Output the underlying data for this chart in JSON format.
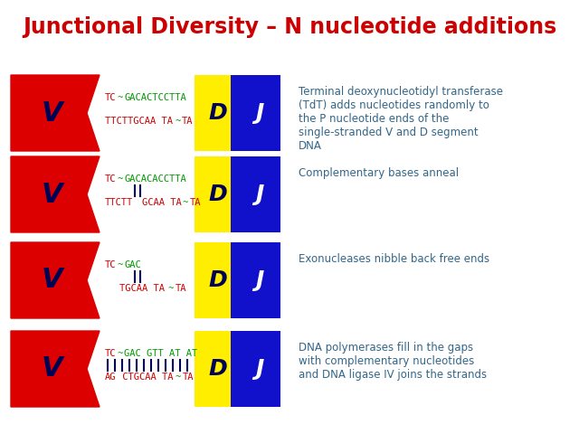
{
  "title": "Junctional Diversity – N nucleotide additions",
  "title_color": "#CC0000",
  "title_fontsize": 17,
  "bg_color": "#FFFFFF",
  "rows": [
    {
      "description": "Terminal deoxynucleotidyl transferase\n(TdT) adds nucleotides randomly to\nthe P nucleotide ends of the\nsingle-stranded V and D segment\nDNA",
      "top_seq_parts": [
        {
          "text": "TC",
          "color": "#CC0000"
        },
        {
          "text": "~",
          "color": "#009900"
        },
        {
          "text": "GACACTCCTTA",
          "color": "#009900"
        }
      ],
      "bottom_seq_parts": [
        {
          "text": "TTCTTGCAA TA",
          "color": "#CC0000"
        },
        {
          "text": "~",
          "color": "#009900"
        },
        {
          "text": "TA",
          "color": "#CC0000"
        }
      ],
      "lines": [],
      "short": false
    },
    {
      "description": "Complementary bases anneal",
      "top_seq_parts": [
        {
          "text": "TC",
          "color": "#CC0000"
        },
        {
          "text": "~",
          "color": "#009900"
        },
        {
          "text": "GACACACCTTA",
          "color": "#009900"
        }
      ],
      "bottom_seq_parts": [
        {
          "text": "TTCTT",
          "color": "#CC0000"
        },
        {
          "text": "GCAA TA",
          "color": "#CC0000"
        },
        {
          "text": "~",
          "color": "#009900"
        },
        {
          "text": "TA",
          "color": "#CC0000"
        }
      ],
      "lines": [
        0,
        1
      ],
      "short": false
    },
    {
      "description": "Exonucleases nibble back free ends",
      "top_seq_parts": [
        {
          "text": "TC",
          "color": "#CC0000"
        },
        {
          "text": "~",
          "color": "#009900"
        },
        {
          "text": "GAC",
          "color": "#009900"
        }
      ],
      "bottom_seq_parts": [
        {
          "text": "TGCAA TA",
          "color": "#CC0000"
        },
        {
          "text": "~",
          "color": "#009900"
        },
        {
          "text": "TA",
          "color": "#CC0000"
        }
      ],
      "lines": [
        0,
        1
      ],
      "short": true
    },
    {
      "description": "DNA polymerases fill in the gaps\nwith complementary nucleotides\nand DNA ligase IV joins the strands",
      "top_seq_parts": [
        {
          "text": "TC",
          "color": "#CC0000"
        },
        {
          "text": "~",
          "color": "#009900"
        },
        {
          "text": "GAC GTT AT AT",
          "color": "#009900"
        }
      ],
      "bottom_seq_parts": [
        {
          "text": "AG",
          "color": "#CC0000"
        },
        {
          "text": " CTGCAA TA",
          "color": "#CC0000"
        },
        {
          "text": "~",
          "color": "#009900"
        },
        {
          "text": "TA",
          "color": "#CC0000"
        }
      ],
      "lines": [
        0,
        1,
        2,
        3,
        4,
        5,
        6,
        7,
        8,
        9,
        10,
        11
      ],
      "short": false,
      "filled": true
    }
  ],
  "RED": "#DD0000",
  "BLUE": "#1111CC",
  "YELLOW": "#FFEE00",
  "DARK_NAVY": "#000055",
  "TEXT_BLUE": "#336688"
}
